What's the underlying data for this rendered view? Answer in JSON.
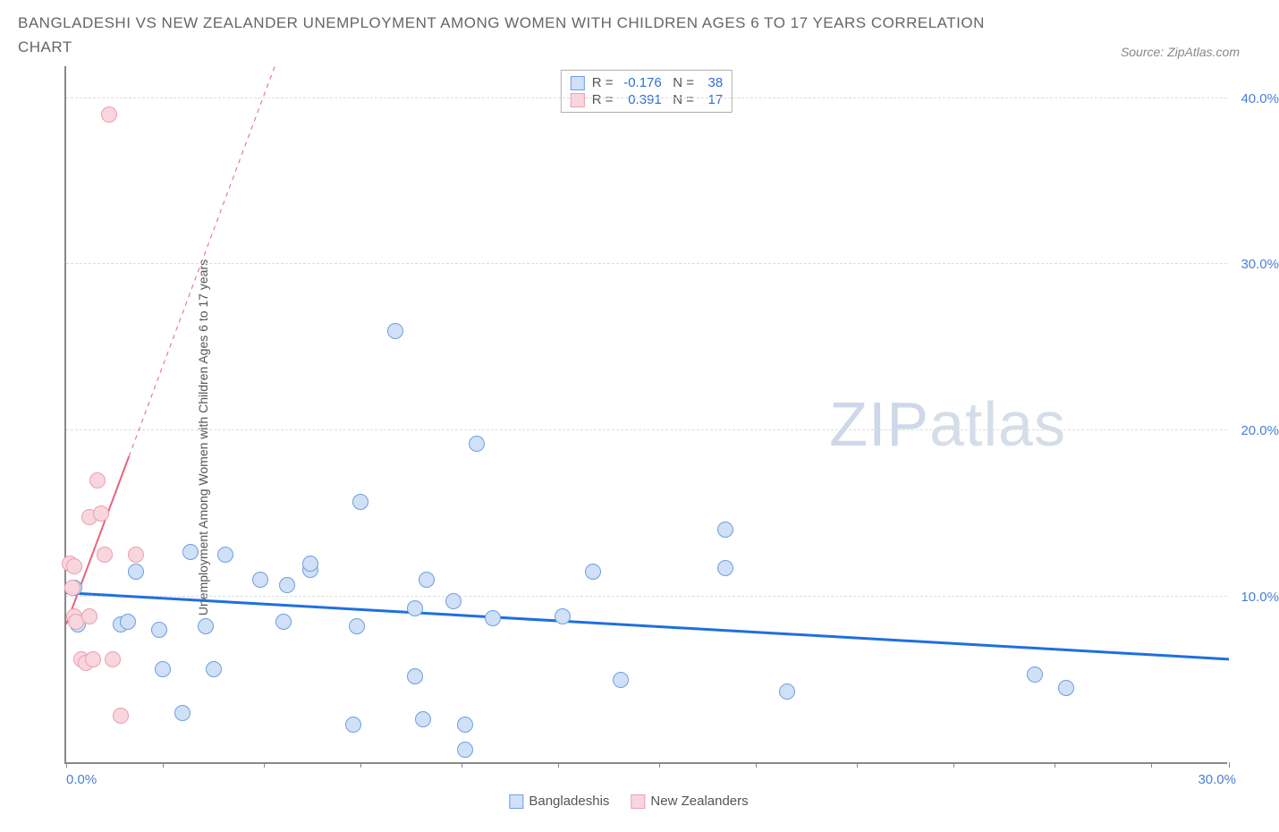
{
  "title": "BANGLADESHI VS NEW ZEALANDER UNEMPLOYMENT AMONG WOMEN WITH CHILDREN AGES 6 TO 17 YEARS CORRELATION CHART",
  "source": "Source: ZipAtlas.com",
  "watermark_a": "ZIP",
  "watermark_b": "atlas",
  "chart": {
    "type": "scatter",
    "ylabel": "Unemployment Among Women with Children Ages 6 to 17 years",
    "xlim": [
      0,
      30
    ],
    "ylim": [
      0,
      42
    ],
    "xtick_positions": [
      0,
      2.5,
      5.1,
      7.6,
      10.2,
      12.7,
      15.3,
      17.8,
      20.4,
      22.9,
      25.5,
      28,
      30
    ],
    "xtick_labels": {
      "first": "0.0%",
      "last": "30.0%"
    },
    "ytick_positions": [
      10,
      20,
      30,
      40
    ],
    "ytick_labels": [
      "10.0%",
      "20.0%",
      "30.0%",
      "40.0%"
    ],
    "grid_color": "#dddddd",
    "background_color": "#ffffff",
    "axis_color": "#888888",
    "tick_label_color": "#4a7fd8",
    "marker_radius": 9,
    "series": [
      {
        "name": "Bangladeshis",
        "fill": "#cfe0f7",
        "stroke": "#6f9fe0",
        "R": "-0.176",
        "N": "38",
        "trend": {
          "x1": 0,
          "y1": 10.2,
          "x2": 30,
          "y2": 6.2,
          "color": "#1f6fe0",
          "width": 3,
          "dash": "none"
        },
        "points": [
          [
            0.2,
            10.5
          ],
          [
            0.3,
            8.3
          ],
          [
            1.4,
            8.3
          ],
          [
            1.6,
            8.5
          ],
          [
            1.8,
            11.5
          ],
          [
            2.4,
            8.0
          ],
          [
            2.5,
            5.6
          ],
          [
            3.0,
            3.0
          ],
          [
            3.2,
            12.7
          ],
          [
            3.6,
            8.2
          ],
          [
            3.8,
            5.6
          ],
          [
            4.1,
            12.5
          ],
          [
            5.0,
            11.0
          ],
          [
            5.6,
            8.5
          ],
          [
            5.7,
            10.7
          ],
          [
            6.3,
            11.6
          ],
          [
            6.3,
            12.0
          ],
          [
            7.4,
            2.3
          ],
          [
            7.5,
            8.2
          ],
          [
            7.6,
            15.7
          ],
          [
            8.5,
            26.0
          ],
          [
            9.0,
            5.2
          ],
          [
            9.0,
            9.3
          ],
          [
            9.2,
            2.6
          ],
          [
            9.3,
            11.0
          ],
          [
            10.0,
            9.7
          ],
          [
            10.3,
            2.3
          ],
          [
            10.3,
            0.8
          ],
          [
            10.6,
            19.2
          ],
          [
            11.0,
            8.7
          ],
          [
            12.8,
            8.8
          ],
          [
            13.6,
            11.5
          ],
          [
            14.3,
            5.0
          ],
          [
            17.0,
            14.0
          ],
          [
            17.0,
            11.7
          ],
          [
            18.6,
            4.3
          ],
          [
            25.0,
            5.3
          ],
          [
            25.8,
            4.5
          ]
        ]
      },
      {
        "name": "New Zealanders",
        "fill": "#f9d6de",
        "stroke": "#e89fb0",
        "R": "0.391",
        "N": "17",
        "trend": {
          "x1": 0,
          "y1": 8.3,
          "x2": 5.4,
          "y2": 42,
          "color": "#e8627f",
          "width": 2,
          "dash": "4 4",
          "solid_until_frac": 0.3
        },
        "points": [
          [
            0.1,
            12.0
          ],
          [
            0.15,
            10.5
          ],
          [
            0.2,
            8.8
          ],
          [
            0.2,
            11.8
          ],
          [
            0.25,
            8.5
          ],
          [
            0.4,
            6.2
          ],
          [
            0.5,
            6.0
          ],
          [
            0.6,
            14.8
          ],
          [
            0.6,
            8.8
          ],
          [
            0.7,
            6.2
          ],
          [
            0.8,
            17.0
          ],
          [
            0.9,
            15.0
          ],
          [
            1.0,
            12.5
          ],
          [
            1.1,
            39.0
          ],
          [
            1.2,
            6.2
          ],
          [
            1.4,
            2.8
          ],
          [
            1.8,
            12.5
          ]
        ]
      }
    ],
    "bottom_legend": [
      "Bangladeshis",
      "New Zealanders"
    ]
  }
}
